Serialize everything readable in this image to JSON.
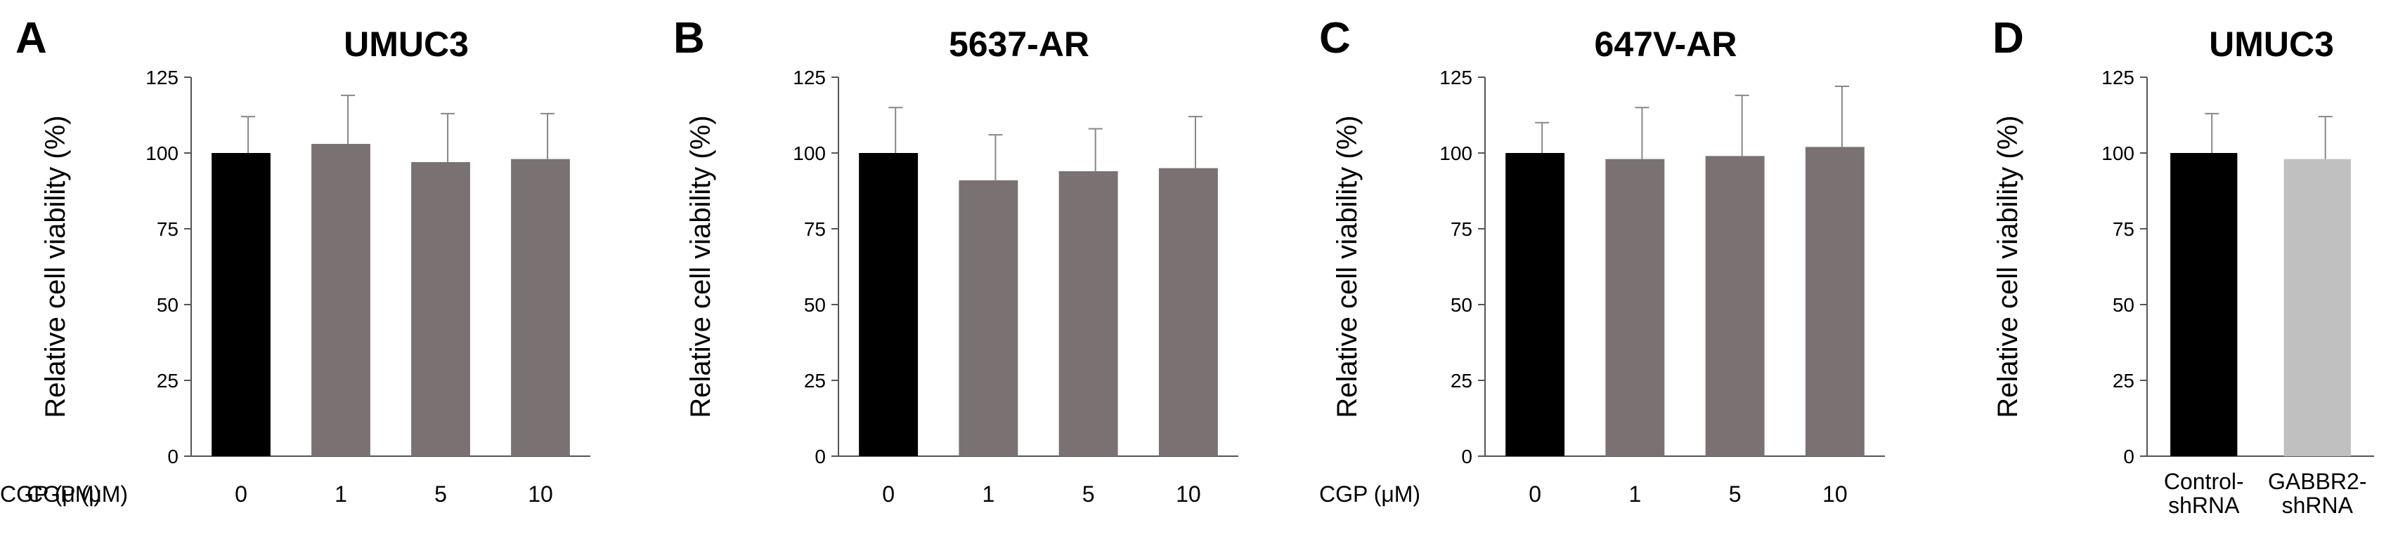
{
  "chart_data": [
    {
      "type": "bar",
      "panel_letter": "A",
      "title": "UMUC3",
      "ylabel": "Relative cell viability (%)",
      "xlabel": "CGP (μM)",
      "categories": [
        "0",
        "1",
        "5",
        "10"
      ],
      "values": [
        100,
        103,
        97,
        98
      ],
      "errors": [
        12,
        16,
        16,
        15
      ],
      "bar_colors": [
        "#000000",
        "#7a7272",
        "#7a7272",
        "#7a7272"
      ],
      "ylim": [
        0,
        125
      ],
      "yticks": [
        "0",
        "25",
        "50",
        "75",
        "100",
        "125"
      ],
      "grid": false
    },
    {
      "type": "bar",
      "panel_letter": "B",
      "title": "5637-AR",
      "ylabel": "Relative cell viability (%)",
      "xlabel": "CGP (μM)",
      "categories": [
        "0",
        "1",
        "5",
        "10"
      ],
      "values": [
        100,
        91,
        94,
        95
      ],
      "errors": [
        15,
        15,
        14,
        17
      ],
      "bar_colors": [
        "#000000",
        "#7a7272",
        "#7a7272",
        "#7a7272"
      ],
      "ylim": [
        0,
        125
      ],
      "yticks": [
        "0",
        "25",
        "50",
        "75",
        "100",
        "125"
      ],
      "grid": false
    },
    {
      "type": "bar",
      "panel_letter": "C",
      "title": "647V-AR",
      "ylabel": "Relative cell viability (%)",
      "xlabel": "CGP (μM)",
      "categories": [
        "0",
        "1",
        "5",
        "10"
      ],
      "values": [
        100,
        98,
        99,
        102
      ],
      "errors": [
        10,
        17,
        20,
        20
      ],
      "bar_colors": [
        "#000000",
        "#7a7272",
        "#7a7272",
        "#7a7272"
      ],
      "ylim": [
        0,
        125
      ],
      "yticks": [
        "0",
        "25",
        "50",
        "75",
        "100",
        "125"
      ],
      "grid": false
    },
    {
      "type": "bar",
      "panel_letter": "D",
      "title": "UMUC3",
      "ylabel": "Relative cell viability (%)",
      "xlabel": "",
      "categories": [
        [
          "Control-",
          "shRNA"
        ],
        [
          "GABBR2-",
          "shRNA"
        ]
      ],
      "values": [
        100,
        98
      ],
      "errors": [
        13,
        14
      ],
      "bar_colors": [
        "#000000",
        "#c0c0c0"
      ],
      "ylim": [
        0,
        125
      ],
      "yticks": [
        "0",
        "25",
        "50",
        "75",
        "100",
        "125"
      ],
      "grid": false
    }
  ]
}
